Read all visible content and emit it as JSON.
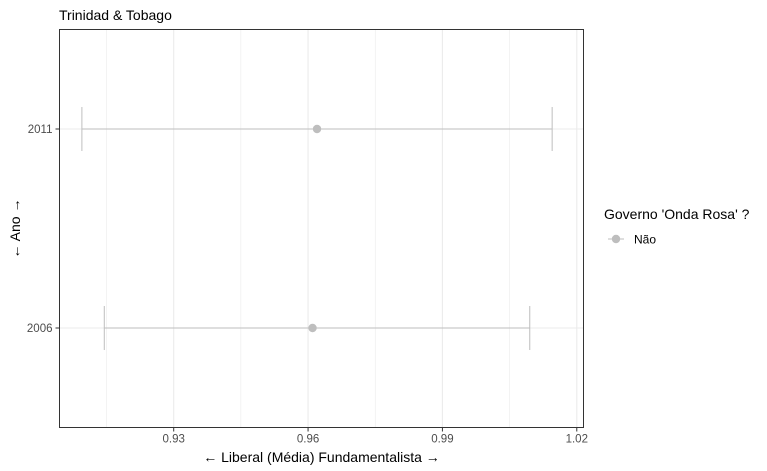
{
  "chart_data": {
    "type": "errorbar",
    "title": "Trinidad & Tobago",
    "xlabel": "← Liberal (Média) Fundamentalista  →",
    "ylabel": "← Ano →",
    "xlim": [
      0.9045,
      1.0215
    ],
    "x_ticks": [
      0.93,
      0.96,
      0.99,
      1.02
    ],
    "x_tick_labels": [
      "0.93",
      "0.96",
      "0.99",
      "1.02"
    ],
    "categories": [
      "2011",
      "2006"
    ],
    "grid": true,
    "legend": {
      "title": "Governo 'Onda Rosa' ?",
      "position": "right",
      "entries": [
        {
          "label": "Não",
          "color": "#bebebe"
        }
      ]
    },
    "points": [
      {
        "year": "2011",
        "mean": 0.962,
        "low": 0.9095,
        "high": 1.0145,
        "governo": "Não"
      },
      {
        "year": "2006",
        "mean": 0.961,
        "low": 0.9145,
        "high": 1.0095,
        "governo": "Não"
      }
    ],
    "colors": {
      "point": "#bebebe",
      "grid": "#ebebeb",
      "panel_border": "#333333"
    }
  }
}
